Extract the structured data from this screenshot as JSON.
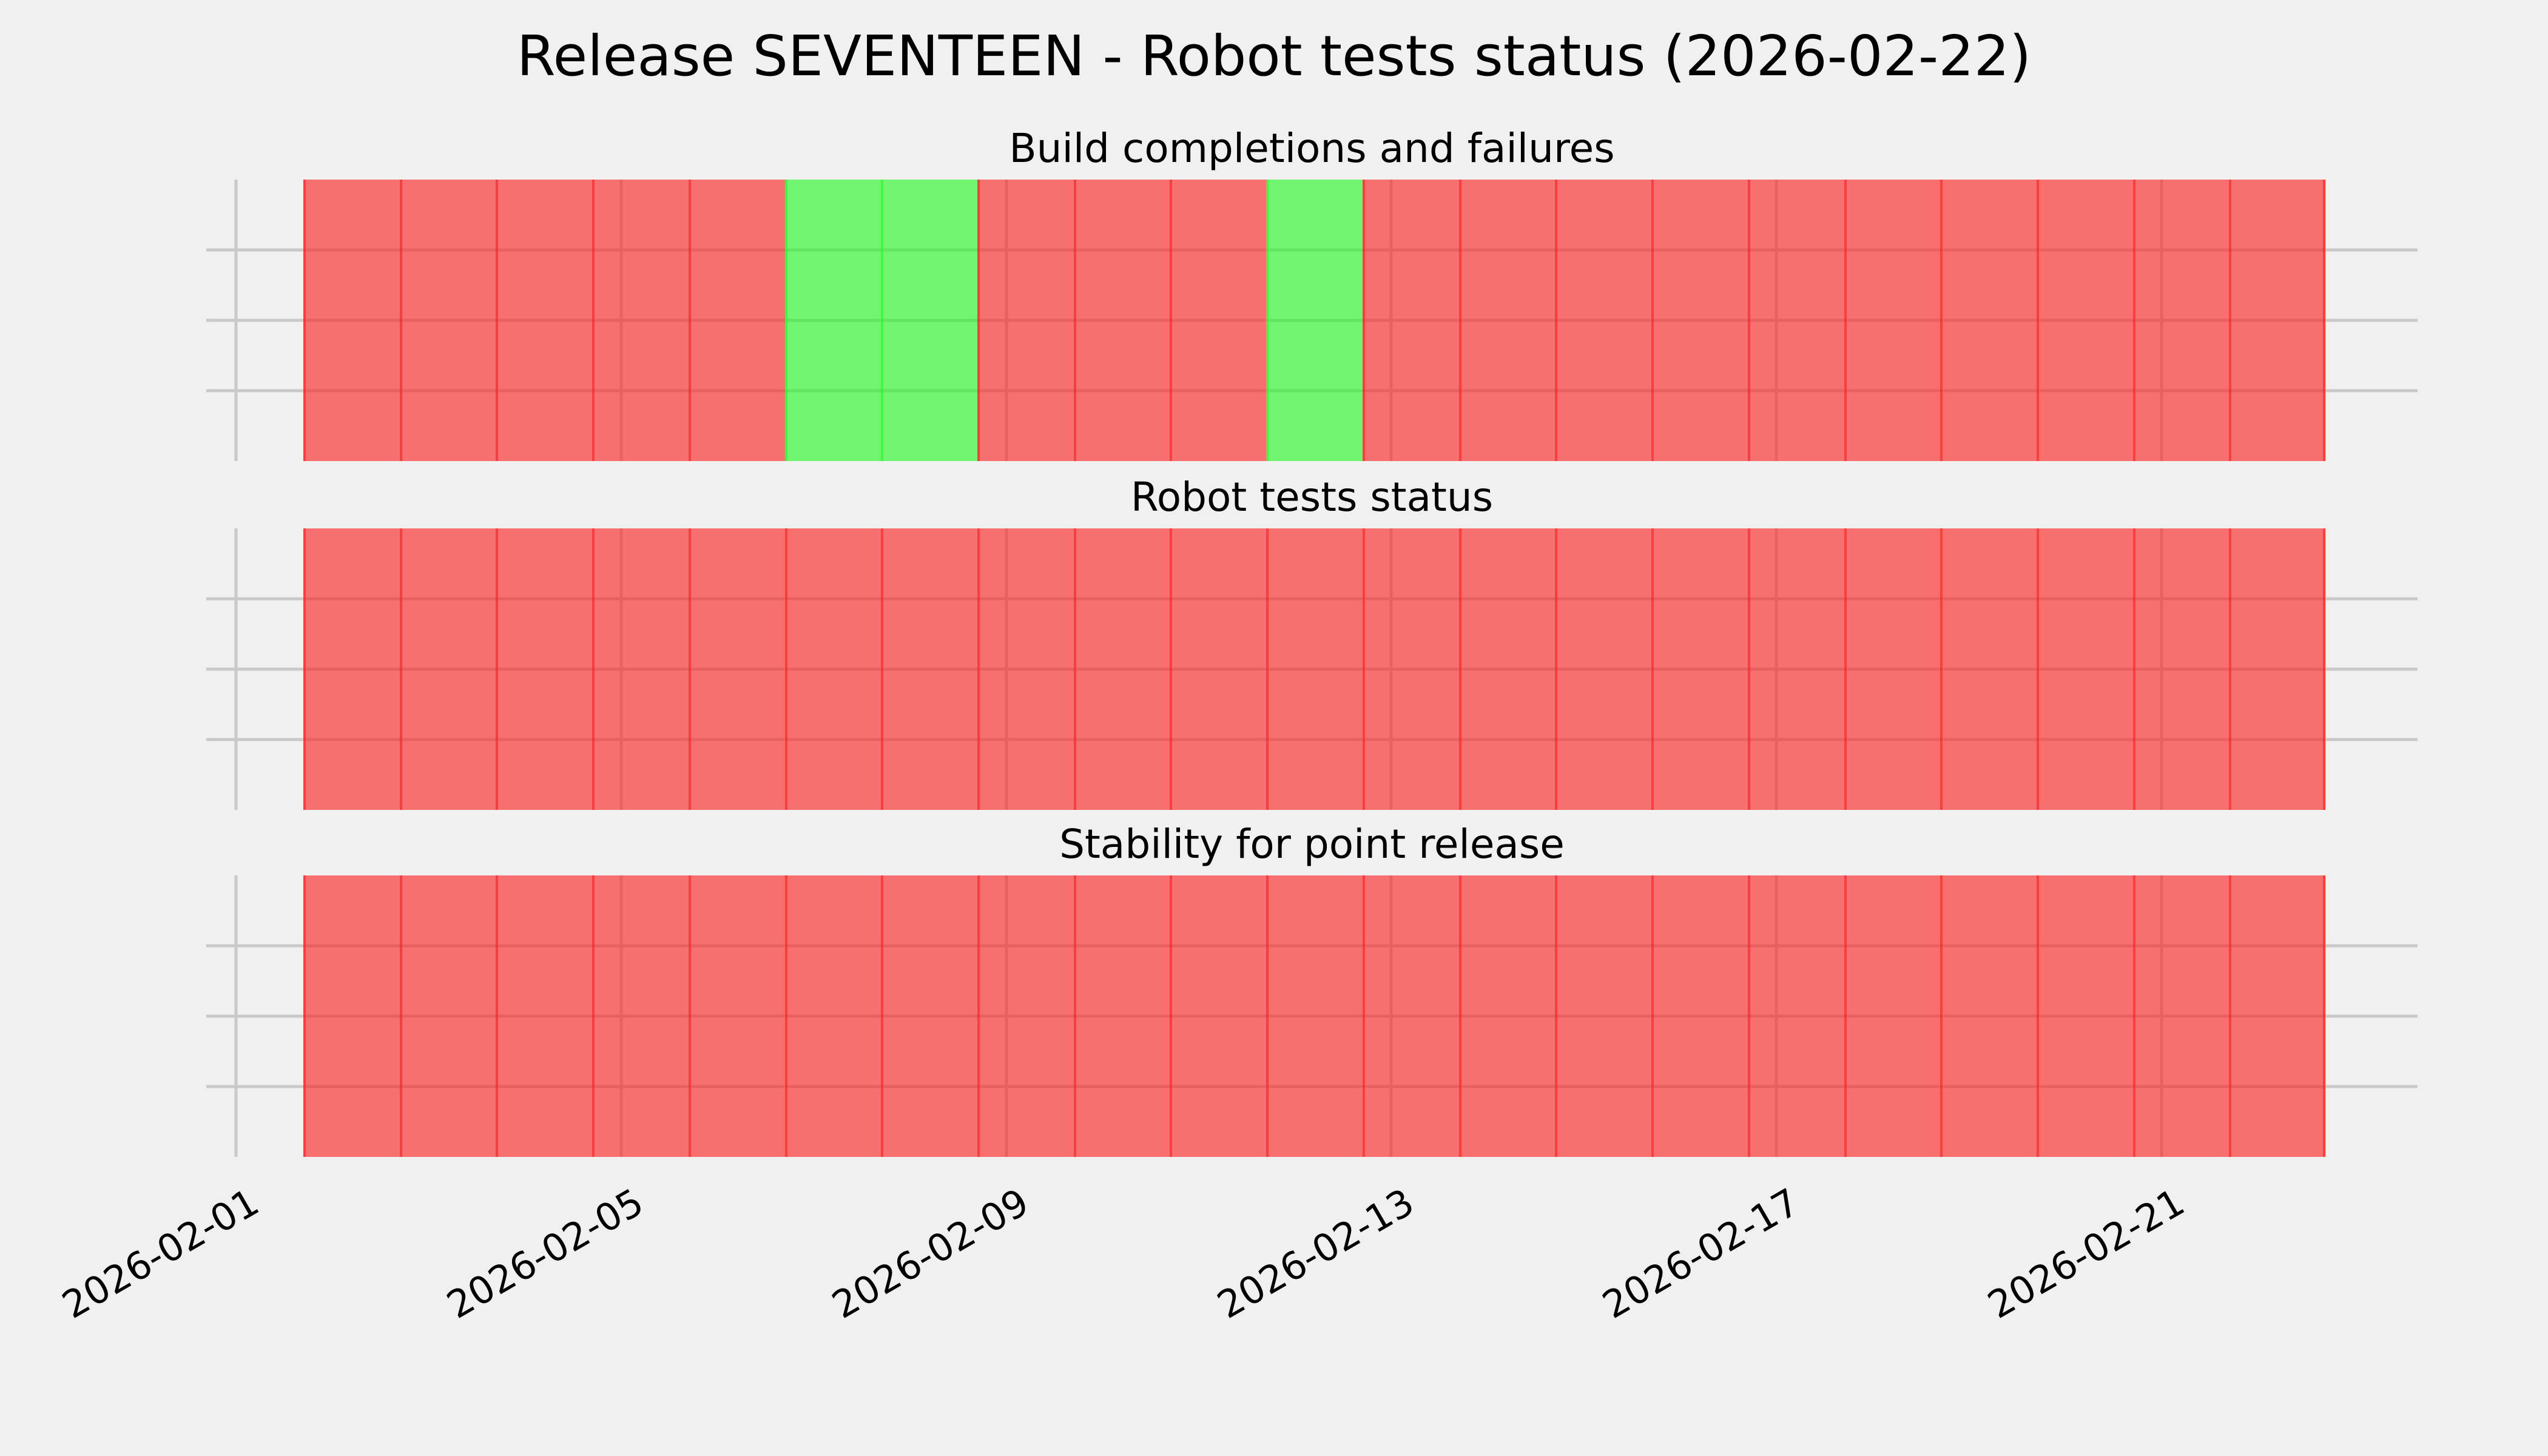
{
  "figure": {
    "title": "Release SEVENTEEN - Robot tests status (2026-02-22)",
    "background_color": "#f0f0f0",
    "grid_color": "#c9c9c9",
    "status_colors": {
      "fail": "rgba(252,32,32,0.62)",
      "pass": "rgba(36,248,36,0.62)"
    }
  },
  "x_axis": {
    "tick_labels": [
      "2026-02-01",
      "2026-02-05",
      "2026-02-09",
      "2026-02-13",
      "2026-02-17",
      "2026-02-21"
    ],
    "rotation_deg": 30,
    "grid": true
  },
  "y_axis": {
    "row_bands": 4,
    "tick_labels": [],
    "grid": true
  },
  "chart_data": [
    {
      "type": "heatmap",
      "title": "Build completions and failures",
      "x_start": "2026-02-02",
      "x_end": "2026-02-22",
      "row_bands": 4,
      "legend": "none",
      "dates": [
        "2026-02-02",
        "2026-02-03",
        "2026-02-04",
        "2026-02-05",
        "2026-02-06",
        "2026-02-07",
        "2026-02-08",
        "2026-02-09",
        "2026-02-10",
        "2026-02-11",
        "2026-02-12",
        "2026-02-13",
        "2026-02-14",
        "2026-02-15",
        "2026-02-16",
        "2026-02-17",
        "2026-02-18",
        "2026-02-19",
        "2026-02-20",
        "2026-02-21",
        "2026-02-22"
      ],
      "statuses": [
        "fail",
        "fail",
        "fail",
        "fail",
        "fail",
        "pass",
        "pass",
        "fail",
        "fail",
        "fail",
        "pass",
        "fail",
        "fail",
        "fail",
        "fail",
        "fail",
        "fail",
        "fail",
        "fail",
        "fail",
        "fail"
      ]
    },
    {
      "type": "heatmap",
      "title": "Robot tests status",
      "x_start": "2026-02-02",
      "x_end": "2026-02-22",
      "row_bands": 4,
      "legend": "none",
      "dates": [
        "2026-02-02",
        "2026-02-03",
        "2026-02-04",
        "2026-02-05",
        "2026-02-06",
        "2026-02-07",
        "2026-02-08",
        "2026-02-09",
        "2026-02-10",
        "2026-02-11",
        "2026-02-12",
        "2026-02-13",
        "2026-02-14",
        "2026-02-15",
        "2026-02-16",
        "2026-02-17",
        "2026-02-18",
        "2026-02-19",
        "2026-02-20",
        "2026-02-21",
        "2026-02-22"
      ],
      "statuses": [
        "fail",
        "fail",
        "fail",
        "fail",
        "fail",
        "fail",
        "fail",
        "fail",
        "fail",
        "fail",
        "fail",
        "fail",
        "fail",
        "fail",
        "fail",
        "fail",
        "fail",
        "fail",
        "fail",
        "fail",
        "fail"
      ]
    },
    {
      "type": "heatmap",
      "title": "Stability for point release",
      "x_start": "2026-02-02",
      "x_end": "2026-02-22",
      "row_bands": 4,
      "legend": "none",
      "dates": [
        "2026-02-02",
        "2026-02-03",
        "2026-02-04",
        "2026-02-05",
        "2026-02-06",
        "2026-02-07",
        "2026-02-08",
        "2026-02-09",
        "2026-02-10",
        "2026-02-11",
        "2026-02-12",
        "2026-02-13",
        "2026-02-14",
        "2026-02-15",
        "2026-02-16",
        "2026-02-17",
        "2026-02-18",
        "2026-02-19",
        "2026-02-20",
        "2026-02-21",
        "2026-02-22"
      ],
      "statuses": [
        "fail",
        "fail",
        "fail",
        "fail",
        "fail",
        "fail",
        "fail",
        "fail",
        "fail",
        "fail",
        "fail",
        "fail",
        "fail",
        "fail",
        "fail",
        "fail",
        "fail",
        "fail",
        "fail",
        "fail",
        "fail"
      ]
    }
  ]
}
